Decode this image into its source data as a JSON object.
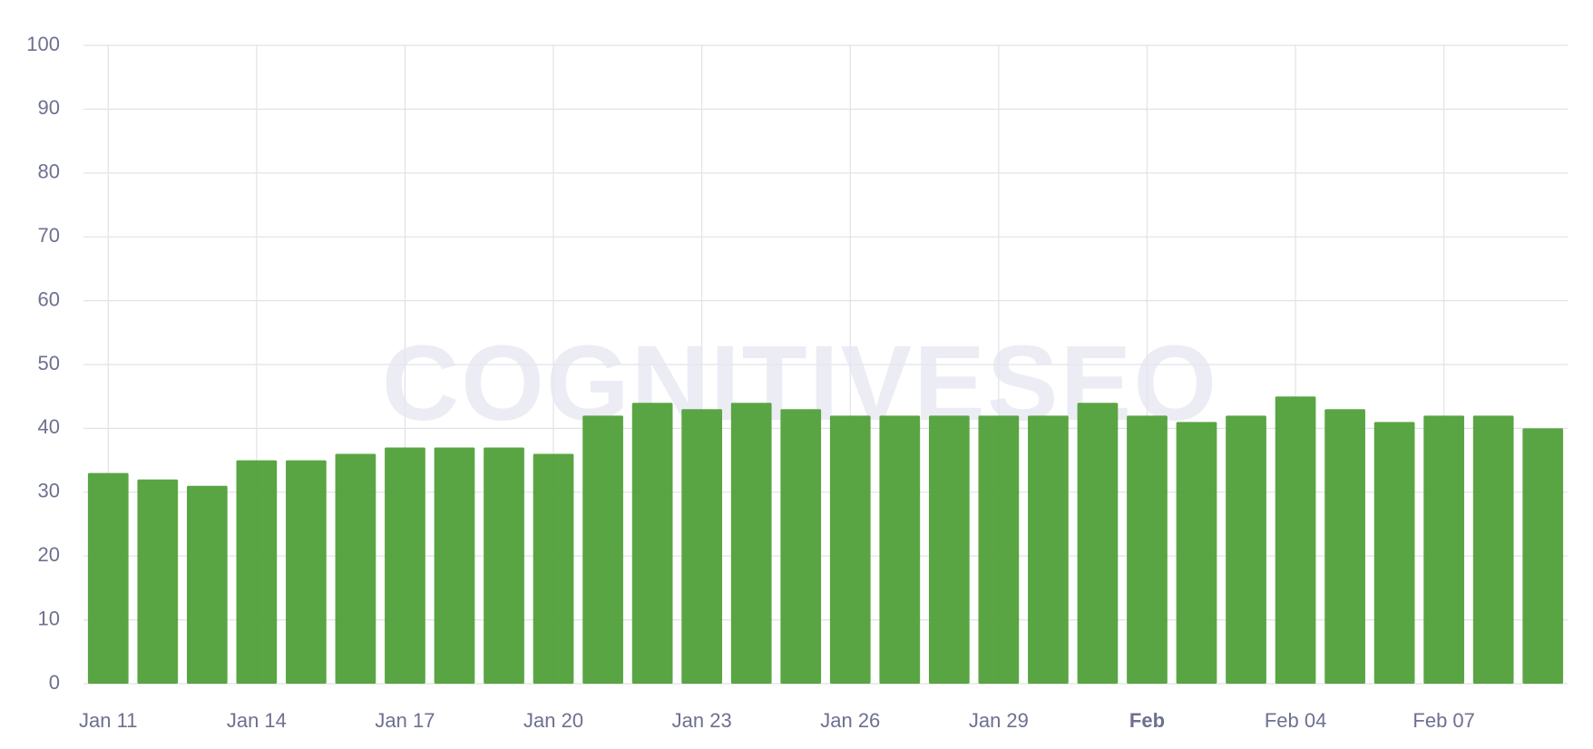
{
  "chart_data": {
    "type": "bar",
    "watermark": "COGNITIVESEO",
    "categories": [
      "Jan 11",
      null,
      null,
      "Jan 14",
      null,
      null,
      "Jan 17",
      null,
      null,
      "Jan 20",
      null,
      null,
      "Jan 23",
      null,
      null,
      "Jan 26",
      null,
      null,
      "Jan 29",
      null,
      null,
      "Feb",
      null,
      null,
      "Feb 04",
      null,
      null,
      "Feb 07",
      null,
      null
    ],
    "values": [
      33,
      32,
      31,
      35,
      35,
      36,
      37,
      37,
      37,
      36,
      42,
      44,
      43,
      44,
      43,
      42,
      42,
      42,
      42,
      42,
      44,
      42,
      41,
      42,
      45,
      43,
      41,
      42,
      42,
      40
    ],
    "color": "#4e9e35",
    "ylim": [
      0,
      100
    ],
    "yticks": [
      0,
      10,
      20,
      30,
      40,
      50,
      60,
      70,
      80,
      90,
      100
    ],
    "grid": true
  }
}
